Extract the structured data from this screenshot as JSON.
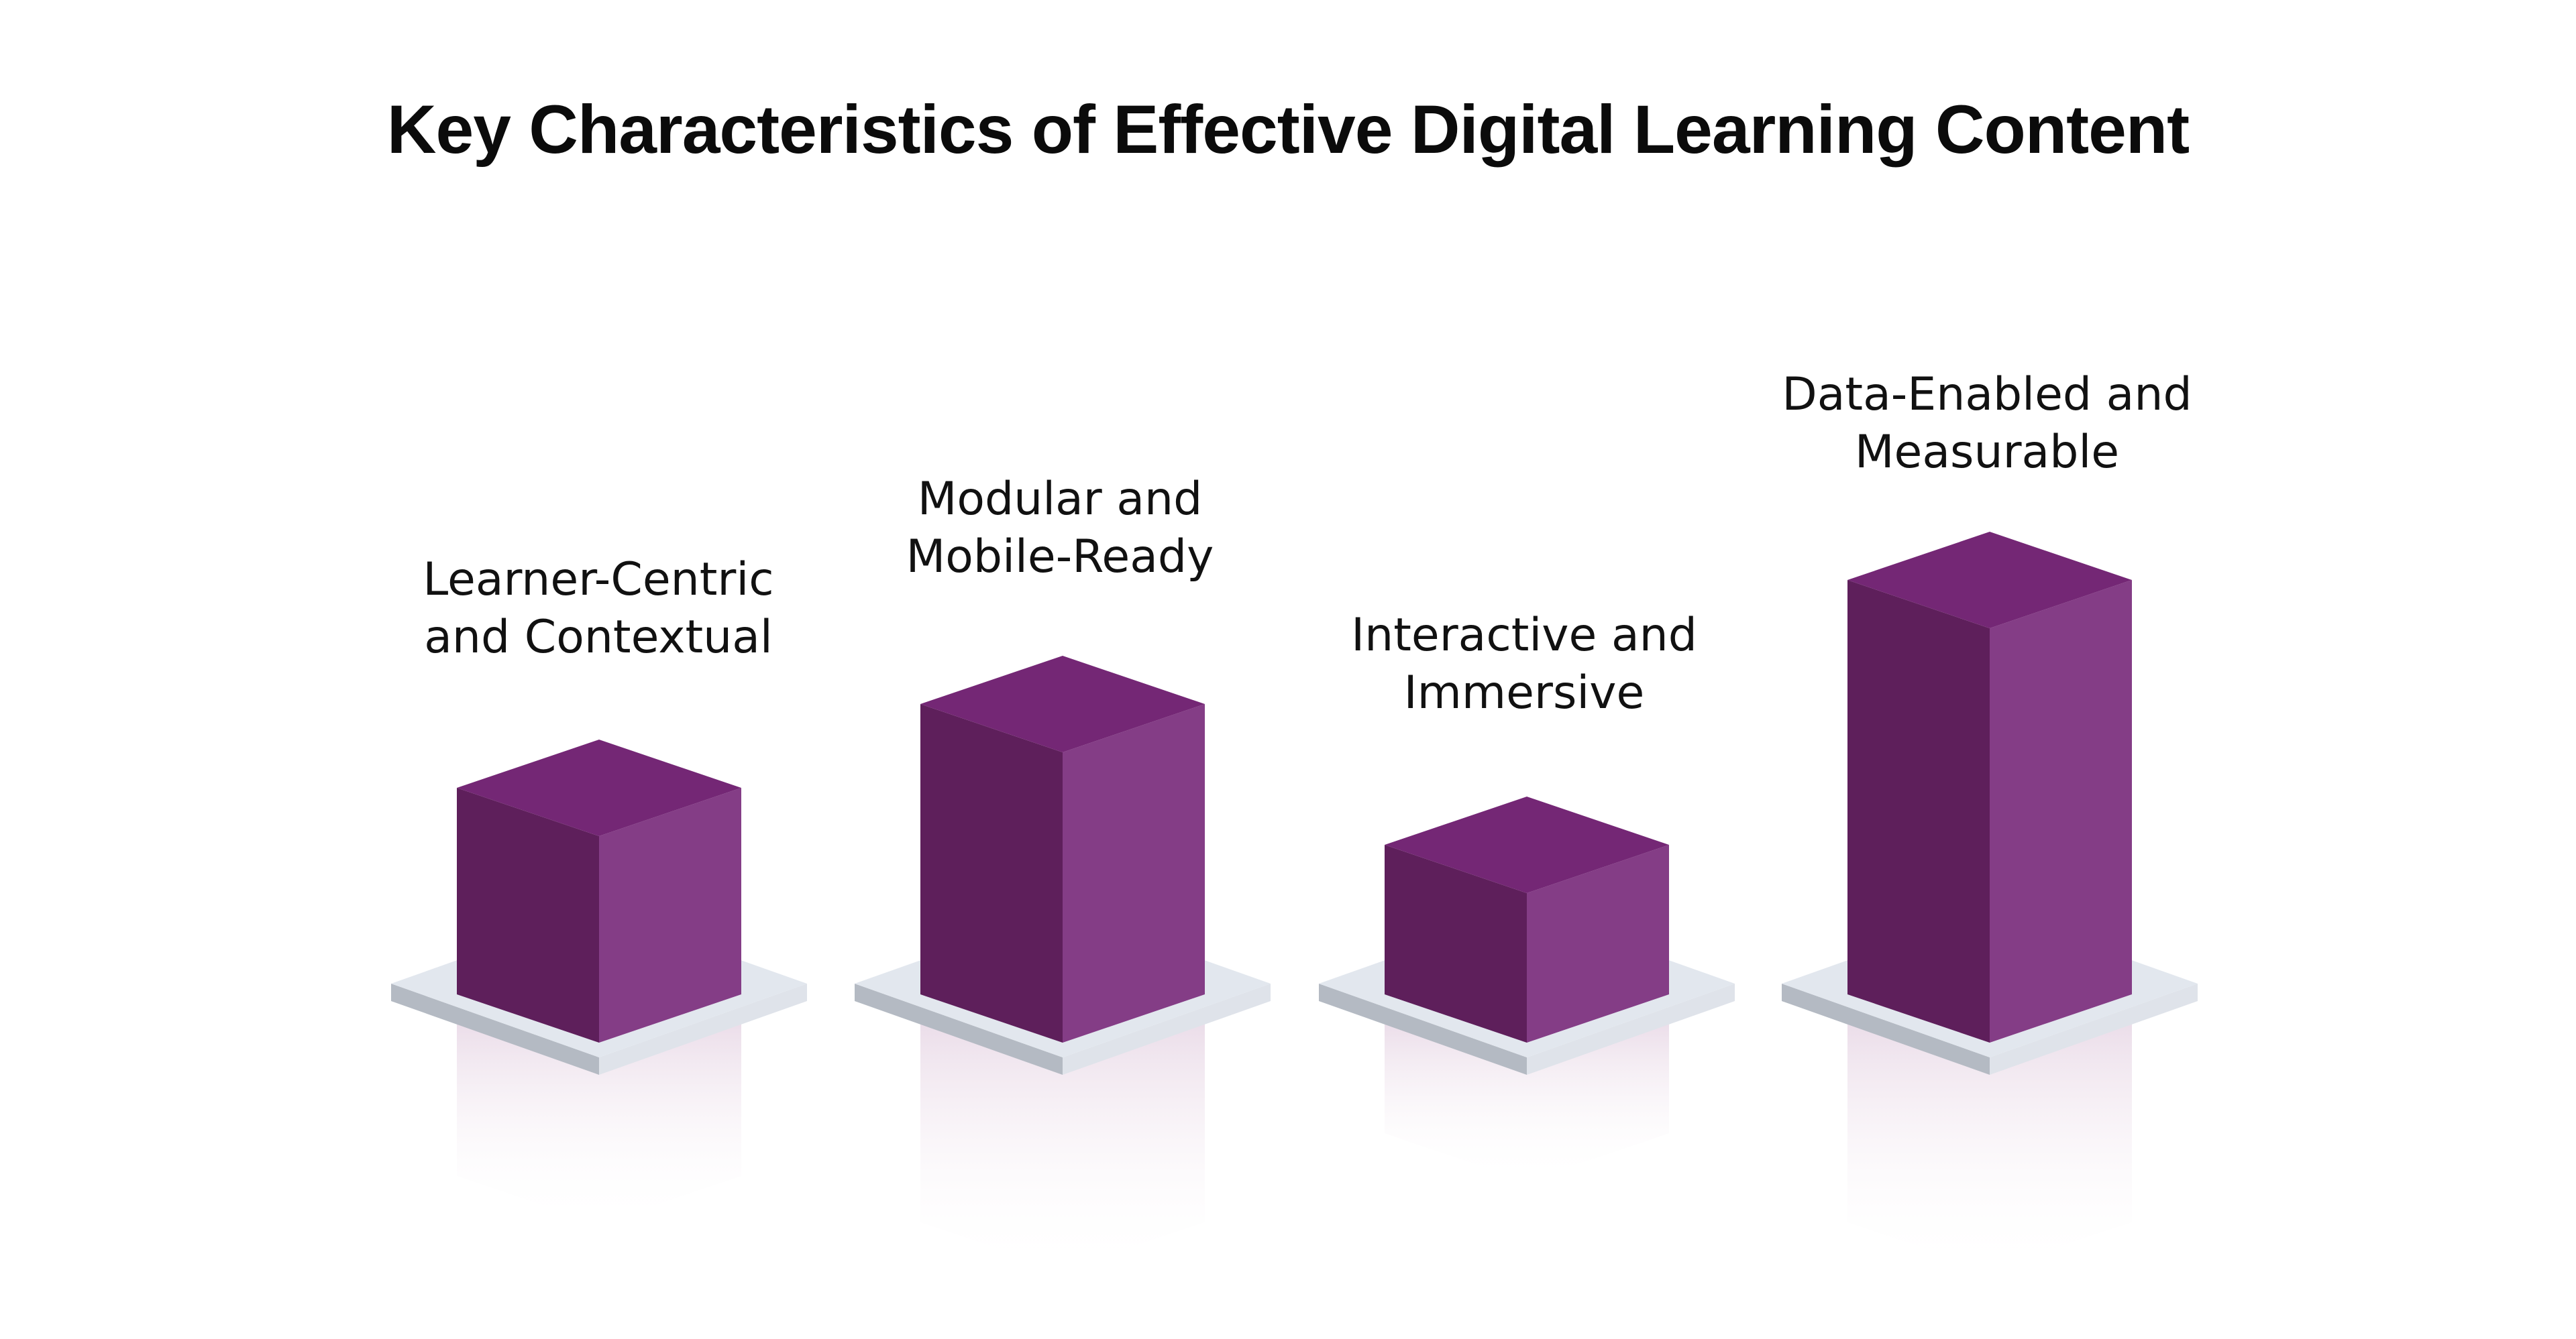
{
  "title": "Key Characteristics of Effective Digital Learning Content",
  "colors": {
    "block_top": "#742775",
    "block_left": "#5e1f5b",
    "block_right": "#843d86",
    "base_top": "#e2e7ee",
    "base_left": "#b4bac3",
    "base_right": "#dfe3ea",
    "reflection": "#eadbe8"
  },
  "pillars": [
    {
      "id": "learner-centric",
      "lines": [
        "Learner-Centric",
        "and Contextual"
      ],
      "height_level": 2
    },
    {
      "id": "modular",
      "lines": [
        "Modular and",
        "Mobile-Ready"
      ],
      "height_level": 3
    },
    {
      "id": "interactive",
      "lines": [
        "Interactive and",
        "Immersive"
      ],
      "height_level": 1
    },
    {
      "id": "data-enabled",
      "lines": [
        "Data-Enabled and",
        "Measurable"
      ],
      "height_level": 4
    }
  ]
}
